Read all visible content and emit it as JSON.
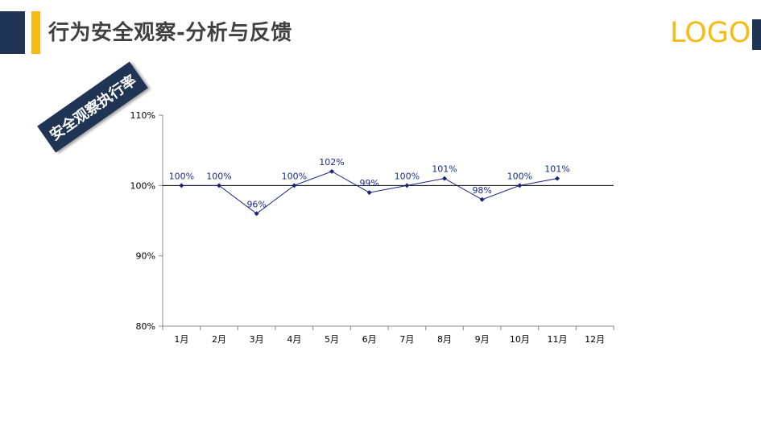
{
  "header": {
    "title": "行为安全观察-分析与反馈",
    "logo_text": "LOGO"
  },
  "side_label": "安全观察执行率",
  "colors": {
    "navy": "#1f3553",
    "accent_yellow": "#f5bc16",
    "series_line": "#1a237e"
  },
  "chart_data": {
    "type": "line",
    "categories": [
      "1月",
      "2月",
      "3月",
      "4月",
      "5月",
      "6月",
      "7月",
      "8月",
      "9月",
      "10月",
      "11月",
      "12月"
    ],
    "series": [
      {
        "values": [
          100,
          100,
          96,
          100,
          102,
          99,
          100,
          101,
          98,
          100,
          101,
          null
        ],
        "labels": [
          "100%",
          "100%",
          "96%",
          "100%",
          "102%",
          "99%",
          "100%",
          "101%",
          "98%",
          "100%",
          "101%",
          ""
        ]
      }
    ],
    "ylim": [
      80,
      110
    ],
    "yticks": [
      80,
      90,
      100,
      110
    ],
    "ytick_labels": [
      "80%",
      "90%",
      "100%",
      "110%"
    ],
    "reference_line": 100
  }
}
